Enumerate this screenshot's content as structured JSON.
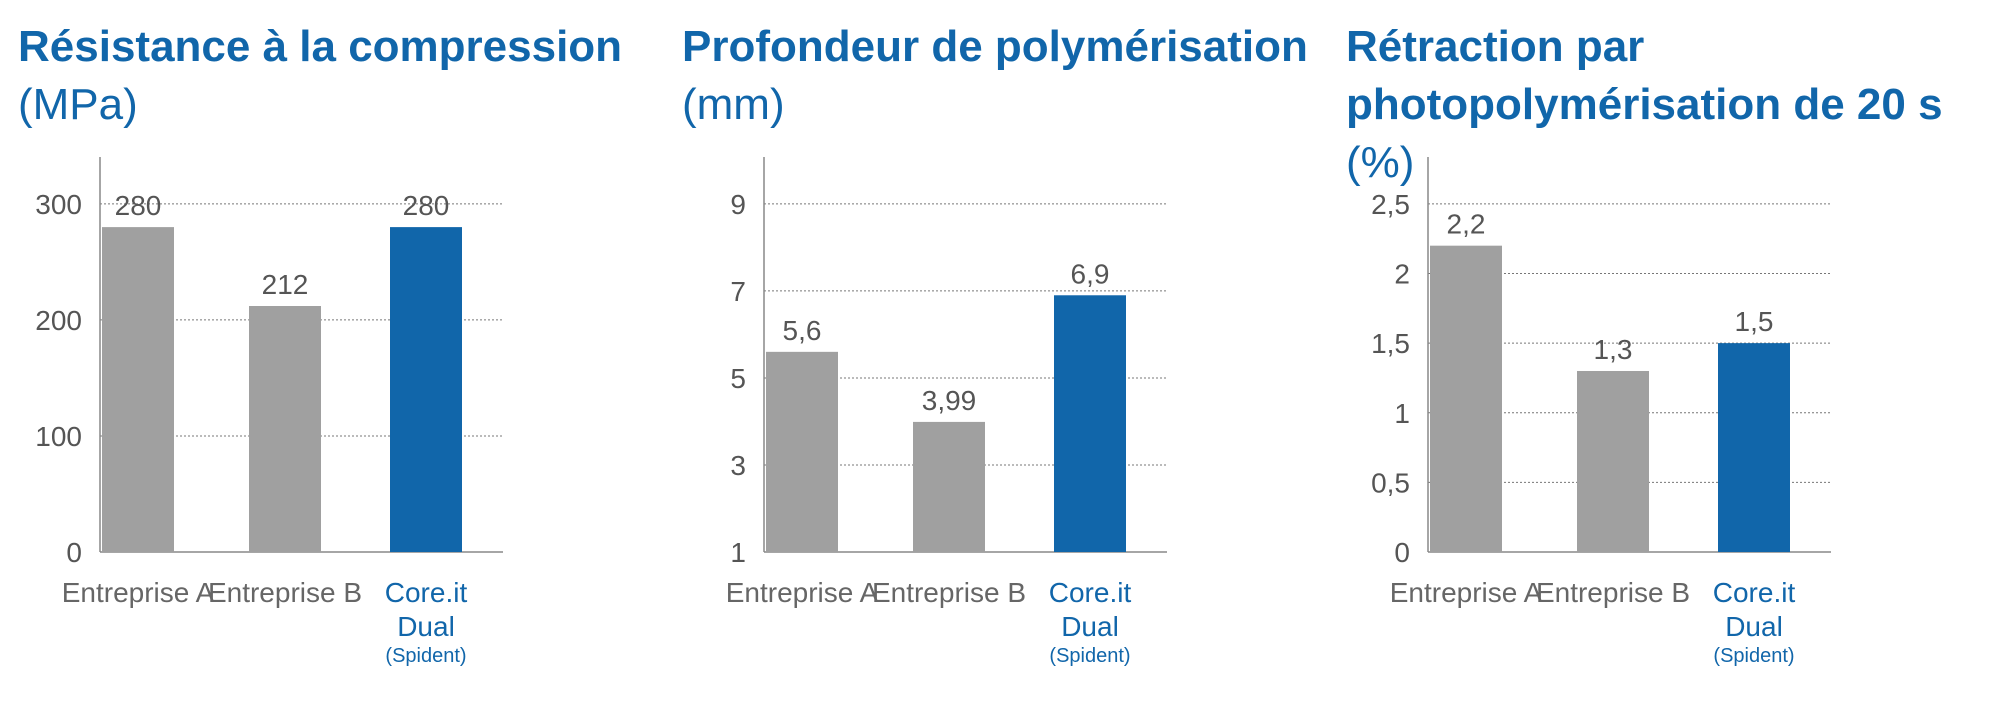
{
  "colors": {
    "accent": "#1166aa",
    "bar": "#a0a0a0",
    "text": "#555555",
    "grid": "#777777"
  },
  "chart_data": [
    {
      "type": "bar",
      "title": "Résistance à la compression",
      "unit": "(MPa)",
      "categories": [
        {
          "lines": [
            "Entreprise A"
          ],
          "highlight": false
        },
        {
          "lines": [
            "Entreprise B"
          ],
          "highlight": false
        },
        {
          "lines": [
            "Core.it",
            "Dual"
          ],
          "sub": "(Spident)",
          "highlight": true
        }
      ],
      "values": [
        280,
        212,
        280
      ],
      "value_labels": [
        "280",
        "212",
        "280"
      ],
      "yticks": [
        0,
        100,
        200,
        300
      ],
      "ytick_labels": [
        "0",
        "100",
        "200",
        "300"
      ],
      "ylim": [
        0,
        300
      ],
      "grid": true
    },
    {
      "type": "bar",
      "title": "Profondeur de polymérisation",
      "unit": "(mm)",
      "categories": [
        {
          "lines": [
            "Entreprise A"
          ],
          "highlight": false
        },
        {
          "lines": [
            "Entreprise B"
          ],
          "highlight": false
        },
        {
          "lines": [
            "Core.it",
            "Dual"
          ],
          "sub": "(Spident)",
          "highlight": true
        }
      ],
      "values": [
        5.6,
        3.99,
        6.9
      ],
      "value_labels": [
        "5,6",
        "3,99",
        "6,9"
      ],
      "yticks": [
        1,
        3,
        5,
        7,
        9
      ],
      "ytick_labels": [
        "1",
        "3",
        "5",
        "7",
        "9"
      ],
      "ylim": [
        1,
        9
      ],
      "grid": true
    },
    {
      "type": "bar",
      "title_lines": [
        "Rétraction par",
        "photopolymérisation de 20 s"
      ],
      "unit": "(%)",
      "categories": [
        {
          "lines": [
            "Entreprise A"
          ],
          "highlight": false
        },
        {
          "lines": [
            "Entreprise B"
          ],
          "highlight": false
        },
        {
          "lines": [
            "Core.it",
            "Dual"
          ],
          "sub": "(Spident)",
          "highlight": true
        }
      ],
      "values": [
        2.2,
        1.3,
        1.5
      ],
      "value_labels": [
        "2,2",
        "1,3",
        "1,5"
      ],
      "yticks": [
        0,
        0.5,
        1,
        1.5,
        2,
        2.5
      ],
      "ytick_labels": [
        "0",
        "0,5",
        "1",
        "1,5",
        "2",
        "2,5"
      ],
      "ylim": [
        0,
        2.5
      ],
      "grid": true
    }
  ]
}
